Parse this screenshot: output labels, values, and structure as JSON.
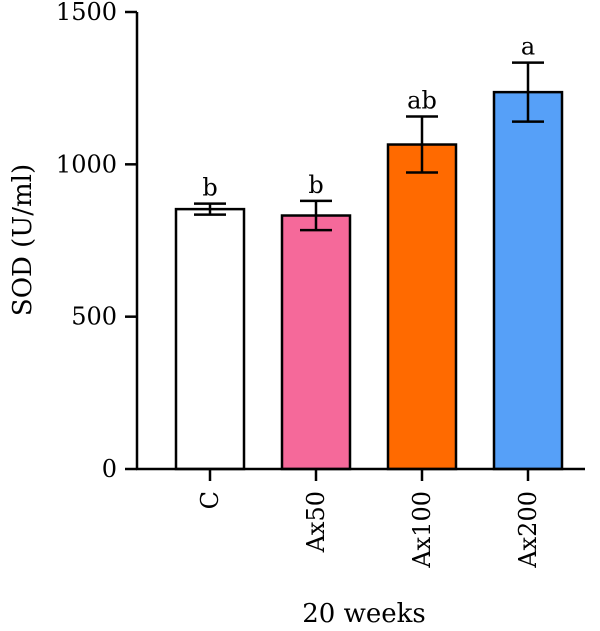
{
  "chart_data": {
    "type": "bar",
    "title": "",
    "xlabel": "20 weeks",
    "ylabel": "SOD (U/ml)",
    "ylim": [
      0,
      1500
    ],
    "yticks": [
      0,
      500,
      1000,
      1500
    ],
    "ytick_labels": [
      "0",
      "500",
      "1000",
      "1500"
    ],
    "categories": [
      "C",
      "Ax50",
      "Ax100",
      "Ax200"
    ],
    "values": [
      853,
      832,
      1065,
      1237
    ],
    "errors": [
      18,
      48,
      92,
      97
    ],
    "significance": [
      "b",
      "b",
      "ab",
      "a"
    ],
    "colors": [
      "#ffffff",
      "#f5699a",
      "#ff6a00",
      "#56a0f8"
    ],
    "grid": false,
    "legend": "none"
  }
}
